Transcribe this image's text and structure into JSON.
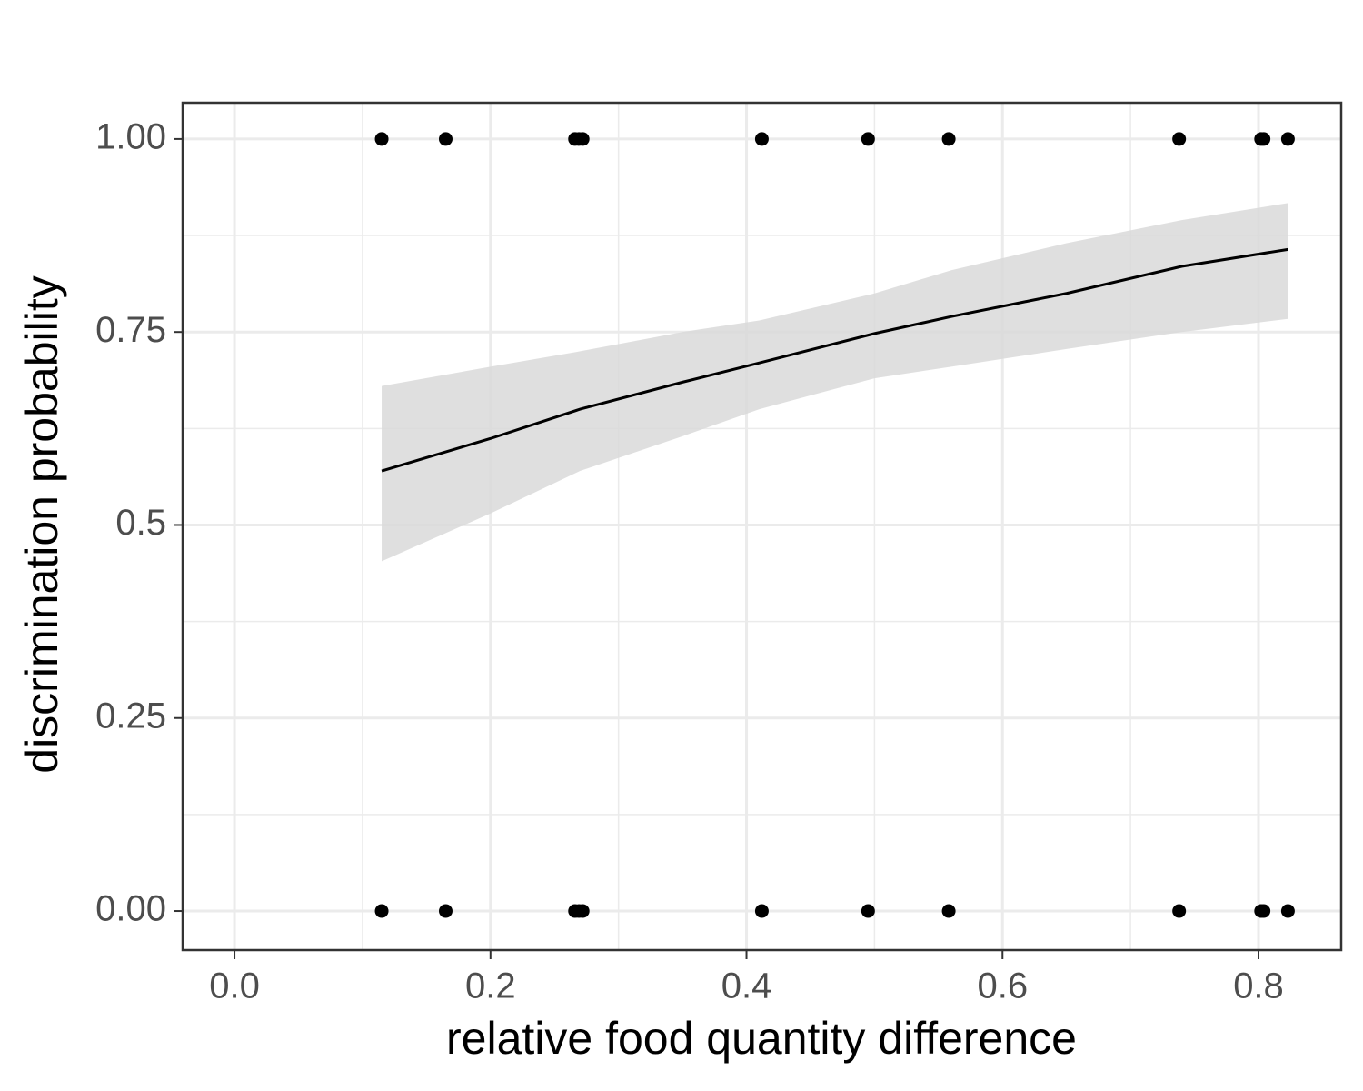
{
  "chart_data": {
    "type": "scatter",
    "x_label": "relative food quantity difference",
    "y_label": "discrimination probability",
    "xlim": [
      -0.0405,
      0.8646
    ],
    "ylim": [
      -0.0506,
      1.047
    ],
    "xticks": [
      {
        "value": 0,
        "label": "0.0"
      },
      0.2,
      0.4,
      0.6,
      0.8
    ],
    "yticks": [
      {
        "value": 0,
        "label": "0.00"
      },
      0.25,
      0.5,
      0.75,
      {
        "value": 1,
        "label": "1.00"
      }
    ],
    "x_minor_ticks": [
      0.1,
      0.3,
      0.5,
      0.7
    ],
    "y_minor_ticks": [
      0.125,
      0.375,
      0.625,
      0.875
    ],
    "grid": true,
    "point_color": "#000000",
    "x": [
      0.115,
      0.165,
      0.266,
      0.269,
      0.272,
      0.412,
      0.495,
      0.558,
      0.738,
      0.802,
      0.804,
      0.823,
      0.115,
      0.165,
      0.266,
      0.269,
      0.272,
      0.412,
      0.495,
      0.558,
      0.738,
      0.802,
      0.804,
      0.823
    ],
    "values": [
      1,
      1,
      1,
      1,
      1,
      1,
      1,
      1,
      1,
      1,
      1,
      1,
      0,
      0,
      0,
      0,
      0,
      0,
      0,
      0,
      0,
      0,
      0,
      0
    ],
    "fit": {
      "color": "#000000",
      "band_color": "#d9d9d9",
      "x": [
        0.115,
        0.2,
        0.27,
        0.35,
        0.41,
        0.5,
        0.56,
        0.65,
        0.74,
        0.823
      ],
      "values": [
        0.57,
        0.612,
        0.65,
        0.685,
        0.71,
        0.748,
        0.77,
        0.8,
        0.835,
        0.857
      ],
      "lower": [
        0.453,
        0.515,
        0.57,
        0.615,
        0.65,
        0.69,
        0.705,
        0.728,
        0.75,
        0.767
      ],
      "upper": [
        0.68,
        0.705,
        0.725,
        0.75,
        0.765,
        0.8,
        0.83,
        0.865,
        0.895,
        0.917
      ]
    }
  }
}
